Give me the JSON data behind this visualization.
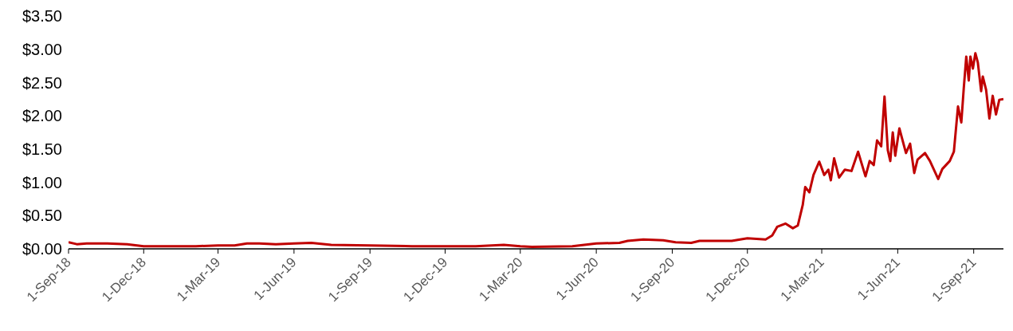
{
  "chart_data": {
    "type": "line",
    "x": [
      "2018-09-01",
      "2018-09-11",
      "2018-09-23",
      "2018-10-18",
      "2018-11-11",
      "2018-12-01",
      "2018-12-25",
      "2019-02-02",
      "2019-03-01",
      "2019-03-21",
      "2019-04-05",
      "2019-04-20",
      "2019-05-10",
      "2019-06-01",
      "2019-06-22",
      "2019-07-16",
      "2019-09-01",
      "2019-10-22",
      "2019-12-01",
      "2020-01-07",
      "2020-02-10",
      "2020-03-01",
      "2020-03-15",
      "2020-05-03",
      "2020-06-01",
      "2020-06-29",
      "2020-07-09",
      "2020-07-28",
      "2020-08-21",
      "2020-09-05",
      "2020-09-24",
      "2020-10-04",
      "2020-11-12",
      "2020-12-01",
      "2020-12-23",
      "2020-12-31",
      "2021-01-06",
      "2021-01-16",
      "2021-01-25",
      "2021-01-31",
      "2021-02-06",
      "2021-02-09",
      "2021-02-14",
      "2021-02-19",
      "2021-02-26",
      "2021-03-04",
      "2021-03-09",
      "2021-03-12",
      "2021-03-16",
      "2021-03-22",
      "2021-03-29",
      "2021-04-06",
      "2021-04-14",
      "2021-04-23",
      "2021-04-28",
      "2021-05-03",
      "2021-05-07",
      "2021-05-12",
      "2021-05-16",
      "2021-05-20",
      "2021-05-23",
      "2021-05-26",
      "2021-05-29",
      "2021-06-03",
      "2021-06-11",
      "2021-06-16",
      "2021-06-21",
      "2021-06-25",
      "2021-07-04",
      "2021-07-10",
      "2021-07-20",
      "2021-07-25",
      "2021-08-03",
      "2021-08-08",
      "2021-08-13",
      "2021-08-17",
      "2021-08-20",
      "2021-08-23",
      "2021-08-26",
      "2021-08-28",
      "2021-08-31",
      "2021-09-03",
      "2021-09-06",
      "2021-09-10",
      "2021-09-12",
      "2021-09-16",
      "2021-09-20",
      "2021-09-24",
      "2021-09-28",
      "2021-10-02",
      "2021-10-07"
    ],
    "series": [
      {
        "color": "#c00000",
        "values": [
          0.1,
          0.07,
          0.08,
          0.08,
          0.07,
          0.04,
          0.04,
          0.04,
          0.05,
          0.05,
          0.08,
          0.08,
          0.07,
          0.08,
          0.09,
          0.06,
          0.05,
          0.04,
          0.04,
          0.04,
          0.06,
          0.04,
          0.03,
          0.04,
          0.08,
          0.09,
          0.12,
          0.14,
          0.13,
          0.1,
          0.09,
          0.12,
          0.12,
          0.16,
          0.14,
          0.2,
          0.33,
          0.38,
          0.31,
          0.35,
          0.66,
          0.93,
          0.85,
          1.11,
          1.31,
          1.11,
          1.19,
          1.03,
          1.36,
          1.07,
          1.19,
          1.17,
          1.46,
          1.09,
          1.32,
          1.26,
          1.63,
          1.54,
          2.29,
          1.48,
          1.32,
          1.75,
          1.4,
          1.81,
          1.44,
          1.58,
          1.14,
          1.34,
          1.44,
          1.32,
          1.05,
          1.2,
          1.32,
          1.46,
          2.14,
          1.9,
          2.42,
          2.89,
          2.53,
          2.89,
          2.71,
          2.94,
          2.8,
          2.37,
          2.59,
          2.39,
          1.96,
          2.3,
          2.02,
          2.24,
          2.25
        ]
      }
    ],
    "xlim": [
      "2018-09-01",
      "2021-10-07"
    ],
    "xticks": [
      {
        "value": "2018-09-01",
        "label": "1-Sep-18"
      },
      {
        "value": "2018-12-01",
        "label": "1-Dec-18"
      },
      {
        "value": "2019-03-01",
        "label": "1-Mar-19"
      },
      {
        "value": "2019-06-01",
        "label": "1-Jun-19"
      },
      {
        "value": "2019-09-01",
        "label": "1-Sep-19"
      },
      {
        "value": "2019-12-01",
        "label": "1-Dec-19"
      },
      {
        "value": "2020-03-01",
        "label": "1-Mar-20"
      },
      {
        "value": "2020-06-01",
        "label": "1-Jun-20"
      },
      {
        "value": "2020-09-01",
        "label": "1-Sep-20"
      },
      {
        "value": "2020-12-01",
        "label": "1-Dec-20"
      },
      {
        "value": "2021-03-01",
        "label": "1-Mar-21"
      },
      {
        "value": "2021-06-01",
        "label": "1-Jun-21"
      },
      {
        "value": "2021-09-01",
        "label": "1-Sep-21"
      }
    ],
    "ylim": [
      0,
      3.5
    ],
    "yticks": [
      {
        "value": 0,
        "label": "$0.00"
      },
      {
        "value": 0.5,
        "label": "$0.50"
      },
      {
        "value": 1,
        "label": "$1.00"
      },
      {
        "value": 1.5,
        "label": "$1.50"
      },
      {
        "value": 2,
        "label": "$2.00"
      },
      {
        "value": 2.5,
        "label": "$2.50"
      },
      {
        "value": 3,
        "label": "$3.00"
      },
      {
        "value": 3.5,
        "label": "$3.50"
      }
    ],
    "grid": false,
    "legend": false,
    "marker": "none",
    "line_style": "solid"
  }
}
